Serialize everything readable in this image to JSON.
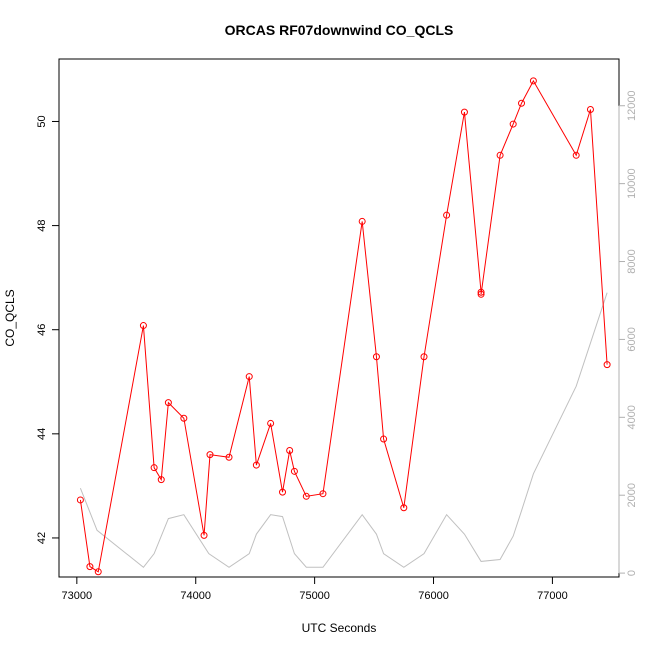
{
  "chart_data": {
    "type": "line",
    "title": "ORCAS RF07downwind CO_QCLS",
    "xlabel": "UTC Seconds",
    "ylabel": "CO_QCLS",
    "xlim": [
      72850,
      77560
    ],
    "ylim": [
      41.25,
      51.2
    ],
    "ylim_right": [
      -100,
      13200
    ],
    "xticks": [
      73000,
      74000,
      75000,
      76000,
      77000
    ],
    "yticks": [
      42,
      44,
      46,
      48,
      50
    ],
    "yticks_right": [
      0,
      2000,
      4000,
      6000,
      8000,
      10000,
      12000
    ],
    "grid": false,
    "colors": {
      "primary": "#ff0000",
      "secondary": "#c0c0c0"
    },
    "series": [
      {
        "axis": "left",
        "marker": "open-circle",
        "x": [
          73030,
          73110,
          73180,
          73560,
          73650,
          73710,
          73770,
          73900,
          74070,
          74120,
          74280,
          74450,
          74510,
          74630,
          74730,
          74790,
          74830,
          74930,
          75070,
          75400,
          75520,
          75580,
          75750,
          75920,
          76110,
          76260,
          76400,
          76400,
          76560,
          76670,
          76740,
          76840,
          77200,
          77320,
          77460
        ],
        "y": [
          42.73,
          41.45,
          41.35,
          46.08,
          43.35,
          43.12,
          44.6,
          44.3,
          42.05,
          43.6,
          43.55,
          45.1,
          43.4,
          44.2,
          42.88,
          43.68,
          43.28,
          42.8,
          42.85,
          48.08,
          45.48,
          43.9,
          42.58,
          45.48,
          48.2,
          50.18,
          46.72,
          46.68,
          49.35,
          49.95,
          50.35,
          50.78,
          49.35,
          50.23,
          45.33
        ]
      },
      {
        "axis": "right",
        "x": [
          73030,
          73170,
          73560,
          73650,
          73770,
          73900,
          74110,
          74280,
          74450,
          74510,
          74630,
          74730,
          74830,
          74930,
          75070,
          75400,
          75520,
          75580,
          75750,
          75920,
          76110,
          76260,
          76400,
          76560,
          76670,
          76740,
          76840,
          77200,
          77460
        ],
        "y": [
          2180,
          1100,
          150,
          500,
          1400,
          1500,
          500,
          150,
          500,
          1000,
          1500,
          1450,
          500,
          150,
          150,
          1500,
          1000,
          500,
          150,
          500,
          1500,
          1000,
          300,
          350,
          950,
          1600,
          2550,
          4800,
          7200
        ]
      }
    ]
  }
}
